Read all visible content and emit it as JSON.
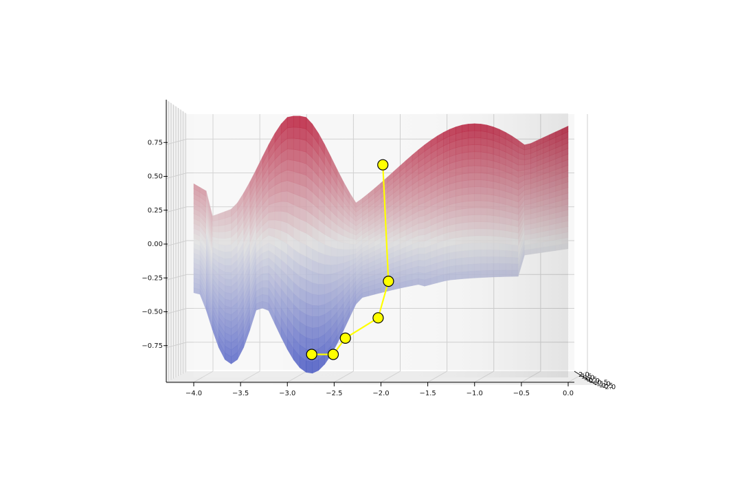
{
  "chart_data": {
    "type": "surface3d",
    "title": "",
    "xlabel": "",
    "ylabel": "",
    "zlabel": "",
    "x_ticks": [
      "−4.0",
      "−3.5",
      "−3.0",
      "−2.5",
      "−2.0",
      "−1.5",
      "−1.0",
      "−0.5",
      "0.0"
    ],
    "x_tick_values": [
      -4.0,
      -3.5,
      -3.0,
      -2.5,
      -2.0,
      -1.5,
      -1.0,
      -0.5,
      0.0
    ],
    "xlim": [
      -4.3,
      0.3
    ],
    "z_ticks": [
      "0.75",
      "0.50",
      "0.25",
      "0.00",
      "−0.25",
      "−0.50",
      "−0.75"
    ],
    "z_tick_values": [
      0.75,
      0.5,
      0.25,
      0.0,
      -0.25,
      -0.5,
      -0.75
    ],
    "zlim": [
      -1.0,
      1.0
    ],
    "y_ticks": [
      "2.0",
      "1.5",
      "1.0",
      "0.5",
      "0.0",
      "−0.5",
      "−1.0",
      "−1.5",
      "−2.0"
    ],
    "y_tick_values": [
      2.0,
      1.5,
      1.0,
      0.5,
      0.0,
      -0.5,
      -1.0,
      -1.5,
      -2.0
    ],
    "ylim": [
      -2.0,
      2.0
    ],
    "colormap": "coolwarm",
    "colormap_colors": [
      "#3b4cc0",
      "#dddddd",
      "#b40426"
    ],
    "grid": true,
    "pane_color": "#f7f7f7",
    "path": {
      "name": "",
      "color": "#ffff00",
      "edge_color": "#000000",
      "x": [
        -1.98,
        -1.92,
        -2.03,
        -2.38,
        -2.51,
        -2.74
      ],
      "z": [
        0.57,
        -0.29,
        -0.56,
        -0.71,
        -0.83,
        -0.83
      ]
    }
  }
}
